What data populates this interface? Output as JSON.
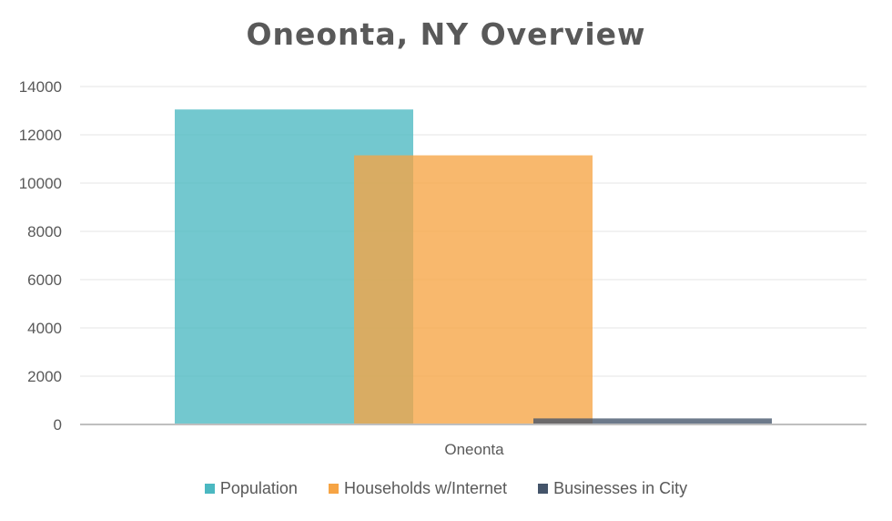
{
  "chart_data": {
    "type": "bar",
    "title": "Oneonta, NY Overview",
    "categories": [
      "Oneonta"
    ],
    "series": [
      {
        "name": "Population",
        "values": [
          13050
        ],
        "color": "#4BB8C1"
      },
      {
        "name": "Households w/Internet",
        "values": [
          11150
        ],
        "color": "#F6A444"
      },
      {
        "name": "Businesses in City",
        "values": [
          250
        ],
        "color": "#44546A"
      }
    ],
    "xlabel": "",
    "ylabel": "",
    "ylim": [
      0,
      14000
    ],
    "yticks": [
      "0",
      "2000",
      "4000",
      "6000",
      "8000",
      "10000",
      "12000",
      "14000"
    ],
    "grid": true,
    "legend_position": "bottom"
  }
}
